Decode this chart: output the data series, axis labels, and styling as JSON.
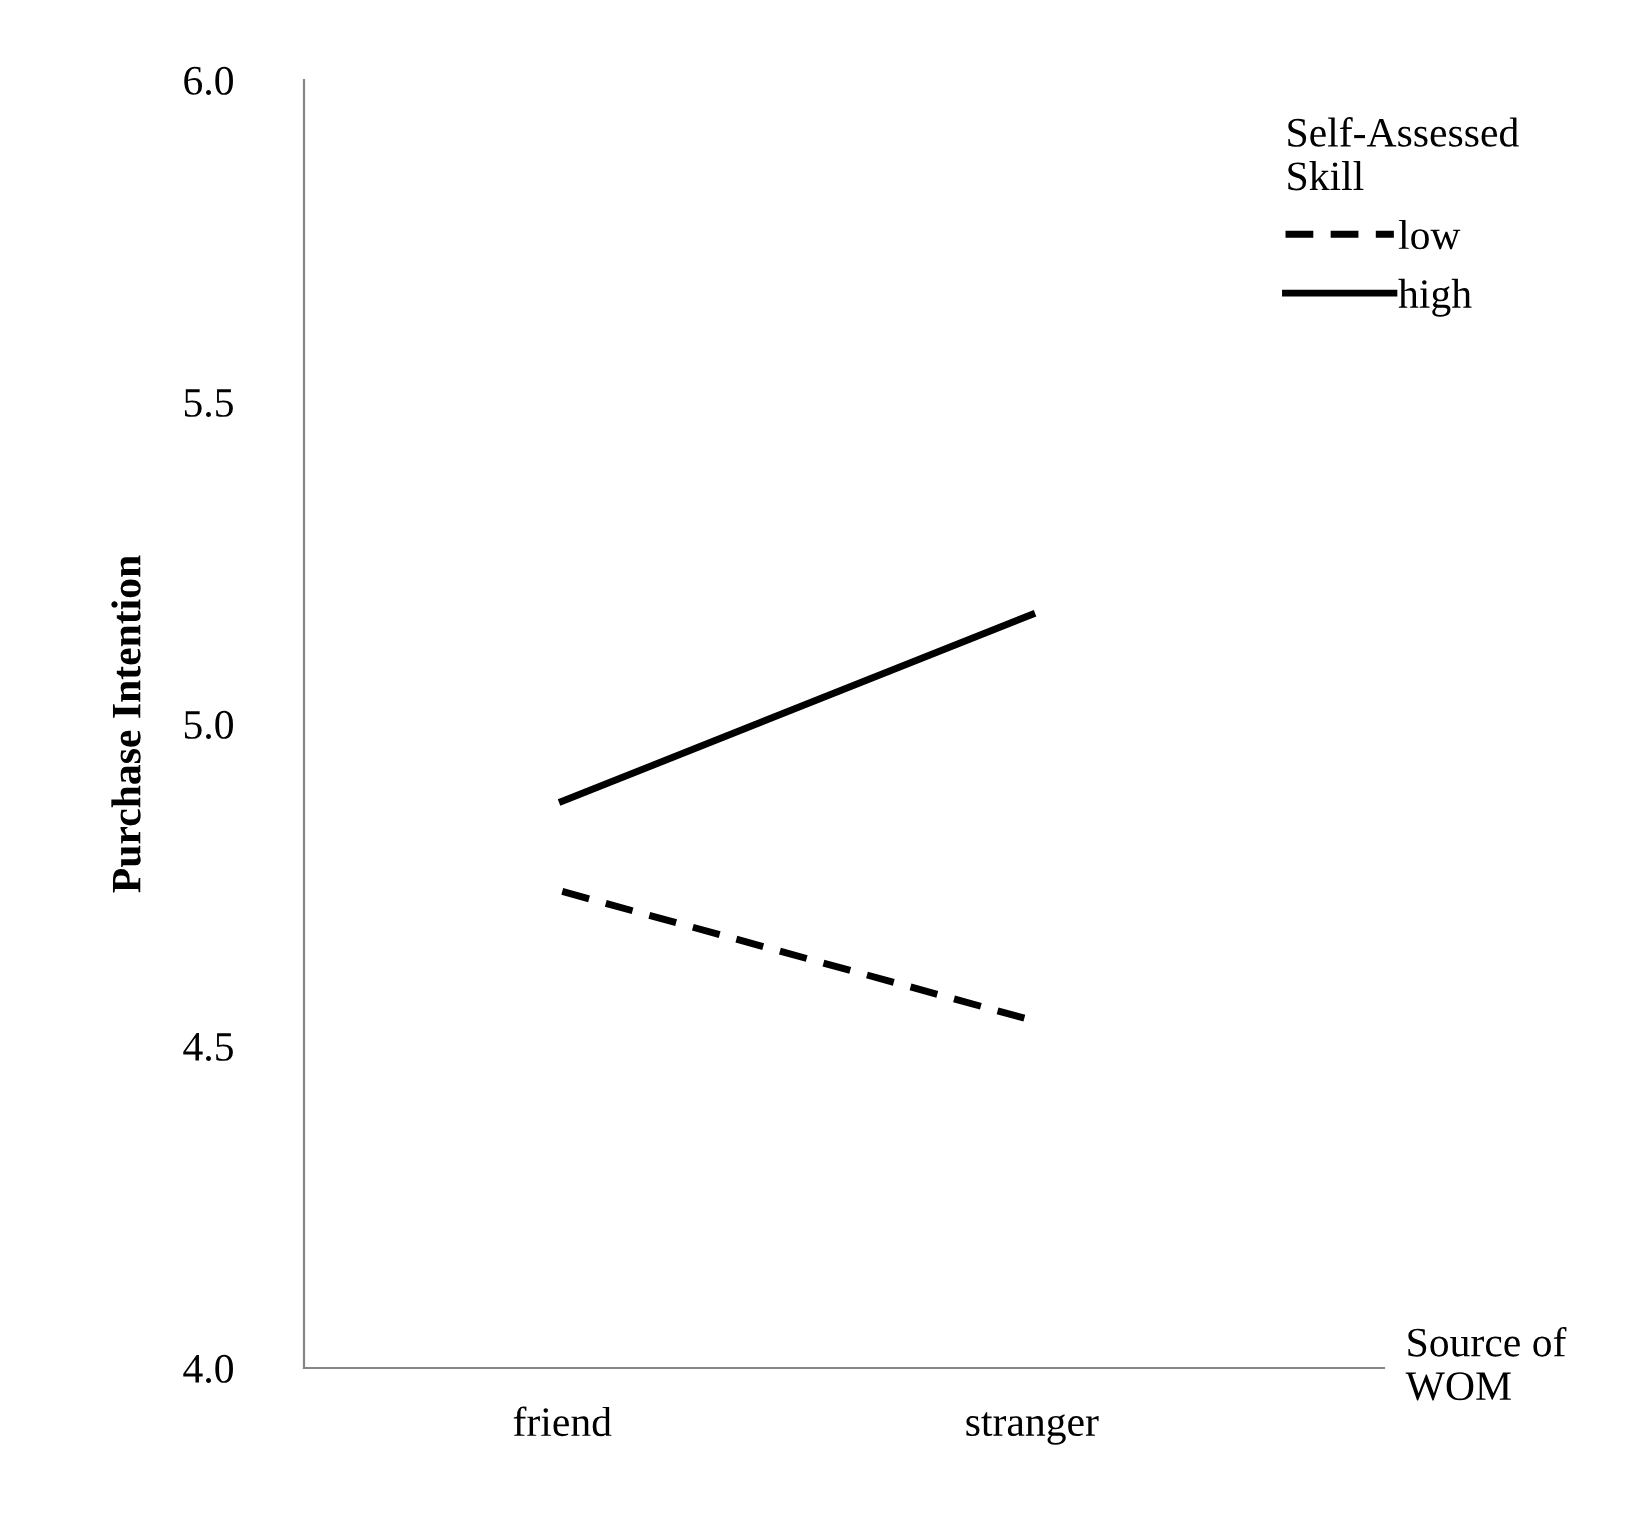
{
  "chart_data": {
    "type": "line",
    "categories": [
      "friend",
      "stranger"
    ],
    "series": [
      {
        "name": "low",
        "color": "#000000",
        "line_style": "dashed",
        "values": [
          4.74,
          4.54
        ]
      },
      {
        "name": "high",
        "color": "#000000",
        "line_style": "solid",
        "values": [
          4.88,
          5.17
        ]
      }
    ],
    "ylabel": "Purchase Intention",
    "xlabel": "Source of\nWOM",
    "legend_title": "Self-Assessed\nSkill",
    "legend": "top right",
    "ylim": [
      4.0,
      6.0
    ],
    "yticks": [
      {
        "value": 4.0,
        "label": "4.0"
      },
      {
        "value": 4.5,
        "label": "4.5"
      },
      {
        "value": 5.0,
        "label": "5.0"
      },
      {
        "value": 5.5,
        "label": "5.5"
      },
      {
        "value": 6.0,
        "label": "6.0"
      }
    ],
    "grid": false,
    "marker": "none"
  }
}
